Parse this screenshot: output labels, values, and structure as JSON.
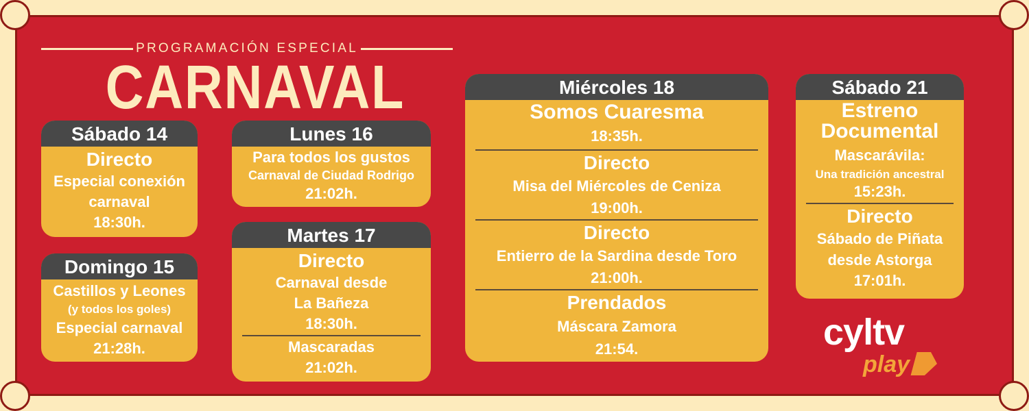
{
  "header": {
    "kicker": "PROGRAMACIÓN ESPECIAL",
    "title": "CARNAVAL"
  },
  "colors": {
    "background": "#fdebbd",
    "panel": "#cc1f2e",
    "card": "#f0b63c",
    "card_header": "#484848",
    "text": "#ffffff"
  },
  "cards": {
    "sab14": {
      "day": "Sábado 14",
      "l1": "Directo",
      "l2": "Especial conexión",
      "l3": "carnaval",
      "l4": "18:30h."
    },
    "dom15": {
      "day": "Domingo 15",
      "l1": "Castillos y Leones",
      "l2": "(y todos los goles)",
      "l3": "Especial carnaval",
      "l4": "21:28h."
    },
    "lun16": {
      "day": "Lunes 16",
      "l1": "Para todos los gustos",
      "l2": "Carnaval de Ciudad Rodrigo",
      "l3": "21:02h."
    },
    "mar17": {
      "day": "Martes 17",
      "l1": "Directo",
      "l2": "Carnaval desde",
      "l3": "La Bañeza",
      "l4": "18:30h.",
      "l5": "Mascaradas",
      "l6": "21:02h."
    },
    "mie18": {
      "day": "Miércoles 18",
      "items": [
        {
          "title": "Somos Cuaresma",
          "time": "18:35h."
        },
        {
          "title": "Directo",
          "desc": "Misa del Miércoles de Ceniza",
          "time": "19:00h."
        },
        {
          "title": "Directo",
          "desc": "Entierro de la Sardina desde Toro",
          "time": "21:00h."
        },
        {
          "title": "Prendados",
          "desc": "Máscara Zamora",
          "time": "21:54."
        }
      ]
    },
    "sab21": {
      "day": "Sábado 21",
      "l1": "Estreno",
      "l2": "Documental",
      "l3": "Mascarávila:",
      "l4": "Una tradición ancestral",
      "l5": "15:23h.",
      "l6": "Directo",
      "l7": "Sábado de Piñata",
      "l8": "desde Astorga",
      "l9": "17:01h."
    }
  },
  "logo": {
    "top": "cyltv",
    "bottom": "play"
  }
}
